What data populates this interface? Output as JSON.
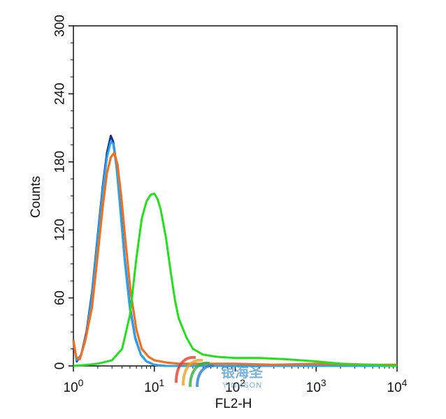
{
  "chart_data": {
    "type": "line",
    "xlabel": "FL2-H",
    "ylabel": "Counts",
    "x_scale": "log",
    "xlim": [
      1,
      10000
    ],
    "ylim": [
      0,
      300
    ],
    "y_ticks": [
      "0",
      "60",
      "120",
      "180",
      "240",
      "300"
    ],
    "x_ticks": [
      {
        "base": "10",
        "exp": "0",
        "value": 1
      },
      {
        "base": "10",
        "exp": "1",
        "value": 10
      },
      {
        "base": "10",
        "exp": "2",
        "value": 100
      },
      {
        "base": "10",
        "exp": "3",
        "value": 1000
      },
      {
        "base": "10",
        "exp": "4",
        "value": 10000
      }
    ],
    "grid": false,
    "legend": "none",
    "series": [
      {
        "color": "#1a2f8f",
        "x": [
          1,
          1.1,
          1.25,
          1.45,
          1.7,
          2.0,
          2.3,
          2.6,
          2.9,
          3.1,
          3.4,
          3.8,
          4.3,
          5.0,
          5.8,
          6.8,
          8.0,
          10,
          14,
          20,
          40,
          100,
          1000,
          10000
        ],
        "y": [
          22,
          4,
          10,
          30,
          65,
          115,
          158,
          188,
          203,
          198,
          178,
          140,
          95,
          52,
          25,
          10,
          4,
          1,
          0,
          0,
          0,
          0,
          0,
          0
        ]
      },
      {
        "color": "#2aa3e8",
        "x": [
          1,
          1.1,
          1.25,
          1.45,
          1.7,
          2.0,
          2.3,
          2.6,
          2.9,
          3.1,
          3.4,
          3.8,
          4.3,
          5.0,
          5.8,
          6.8,
          8.0,
          10,
          14,
          20,
          40,
          100,
          1000,
          10000
        ],
        "y": [
          20,
          5,
          10,
          28,
          62,
          112,
          155,
          184,
          198,
          196,
          176,
          138,
          93,
          50,
          24,
          10,
          4,
          1,
          0,
          0,
          0,
          0,
          0,
          0
        ]
      },
      {
        "color": "#f07020",
        "x": [
          1,
          1.08,
          1.2,
          1.4,
          1.7,
          2.0,
          2.3,
          2.6,
          2.9,
          3.2,
          3.5,
          3.9,
          4.4,
          5.1,
          6.0,
          7.0,
          8.5,
          10,
          14,
          20,
          40,
          100,
          300,
          1000,
          3000,
          10000
        ],
        "y": [
          23,
          8,
          6,
          22,
          52,
          98,
          140,
          170,
          184,
          188,
          178,
          150,
          110,
          65,
          32,
          15,
          8,
          5,
          3,
          2,
          2,
          2,
          1,
          2,
          1,
          1
        ]
      },
      {
        "color": "#22e01a",
        "x": [
          1,
          1.5,
          2.0,
          3.0,
          4.0,
          5.0,
          6.0,
          7.0,
          8.0,
          9.0,
          10,
          11,
          12,
          14,
          16,
          18,
          20,
          25,
          30,
          40,
          60,
          100,
          200,
          400,
          1000,
          2000,
          5000,
          10000
        ],
        "y": [
          0,
          1,
          2,
          5,
          15,
          45,
          95,
          130,
          145,
          151,
          152,
          147,
          138,
          112,
          82,
          58,
          42,
          25,
          15,
          10,
          8,
          7,
          7,
          6,
          4,
          2,
          1,
          0
        ]
      }
    ]
  },
  "watermark": {
    "cn_text": "银海圣",
    "en_text": "YINHSON"
  }
}
